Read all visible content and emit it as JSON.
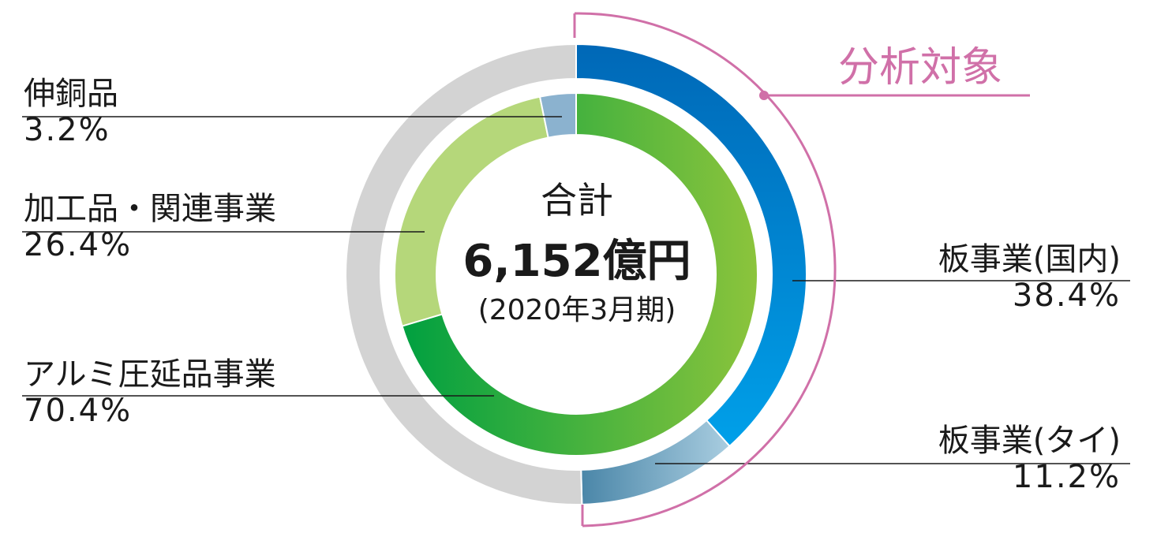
{
  "chart_data": {
    "type": "pie",
    "center": {
      "title": "合計",
      "total": "6,152億円",
      "period": "(2020年3月期)"
    },
    "inner_ring": [
      {
        "name": "アルミ圧延品事業",
        "percent": "70.4%",
        "value": 70.4,
        "colors": [
          "#00a040",
          "#8cc43c"
        ]
      },
      {
        "name": "加工品・関連事業",
        "percent": "26.4%",
        "value": 26.4,
        "color": "#b5d77a"
      },
      {
        "name": "伸銅品",
        "percent": "3.2%",
        "value": 3.2,
        "color": "#8bb2cf"
      }
    ],
    "outer_ring": [
      {
        "name": "板事業(国内)",
        "percent": "38.4%",
        "value": 38.4,
        "colors": [
          "#0068b7",
          "#00a0e9"
        ]
      },
      {
        "name": "板事業(タイ)",
        "percent": "11.2%",
        "value": 11.2,
        "colors": [
          "#4a86a8",
          "#a9cde0"
        ]
      },
      {
        "name": "",
        "value": 50.4,
        "color": "#d3d3d3"
      }
    ],
    "bracket_label": "分析対象",
    "bracket_color": "#d070a8"
  }
}
